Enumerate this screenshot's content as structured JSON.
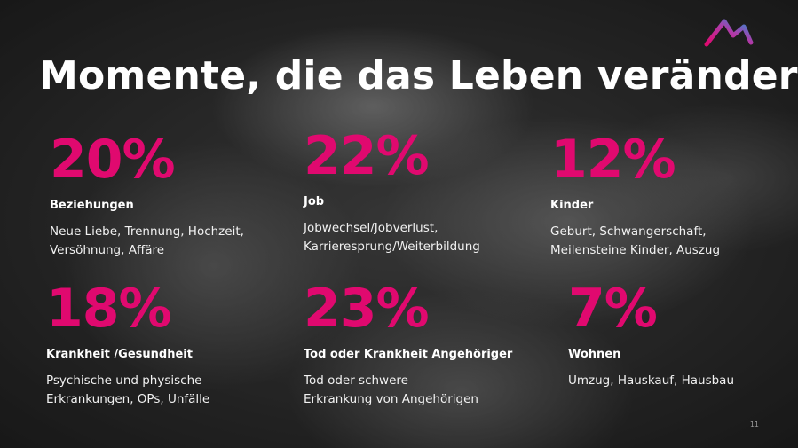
{
  "slide": {
    "title": "Momente, die das Leben verändern",
    "accent_color": "#e0096f",
    "logo": "brand-logo-icon",
    "page_number": "11",
    "stats": [
      {
        "percent": "20%",
        "label": "Beziehungen",
        "description_lines": [
          "Neue Liebe, Trennung, Hochzeit,",
          "Versöhnung, Affäre"
        ]
      },
      {
        "percent": "22%",
        "label": "Job",
        "description_lines": [
          "Jobwechsel/Jobverlust,",
          "Karrieresprung/Weiterbildung"
        ]
      },
      {
        "percent": "12%",
        "label": "Kinder",
        "description_lines": [
          "Geburt, Schwangerschaft,",
          "Meilensteine Kinder, Auszug"
        ]
      },
      {
        "percent": "18%",
        "label": "Krankheit /Gesundheit",
        "description_lines": [
          "Psychische und physische",
          "Erkrankungen, OPs, Unfälle"
        ]
      },
      {
        "percent": "23%",
        "label": "Tod oder Krankheit Angehöriger",
        "description_lines": [
          "Tod oder schwere",
          "Erkrankung von Angehörigen"
        ]
      },
      {
        "percent": "7%",
        "label": "Wohnen",
        "description_lines": [
          "Umzug, Hauskauf, Hausbau"
        ]
      }
    ]
  }
}
